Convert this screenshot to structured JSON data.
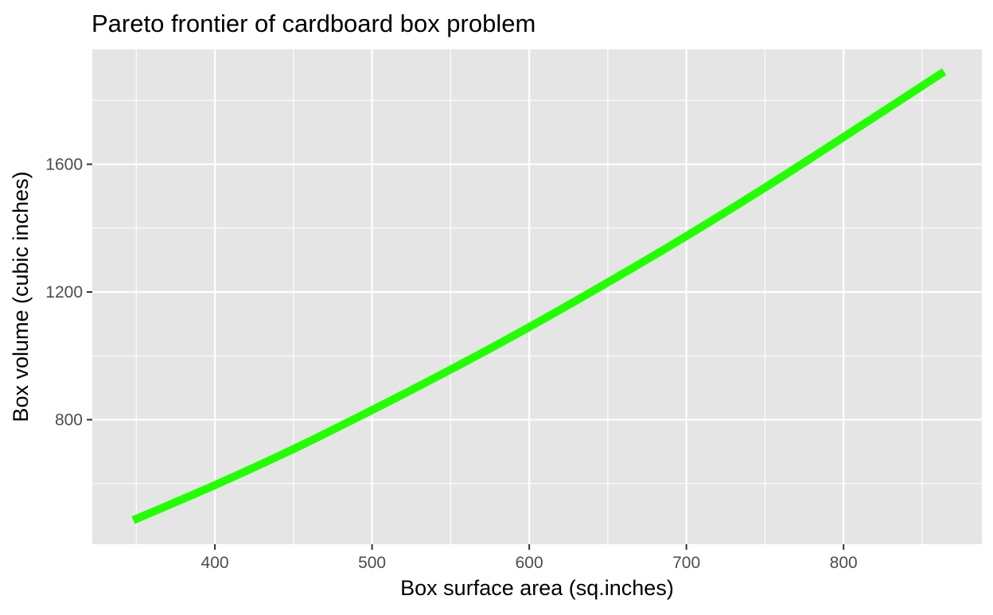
{
  "chart_data": {
    "type": "line",
    "title": "Pareto frontier of cardboard box problem",
    "xlabel": "Box surface area (sq.inches)",
    "ylabel": "Box volume (cubic inches)",
    "xlim": [
      322,
      888
    ],
    "ylim": [
      410,
      1960
    ],
    "x_ticks": [
      400,
      500,
      600,
      700,
      800
    ],
    "x_tick_labels": [
      "400",
      "500",
      "600",
      "700",
      "800"
    ],
    "x_minor_ticks": [
      350,
      450,
      550,
      650,
      750,
      850
    ],
    "y_ticks": [
      800,
      1200,
      1600
    ],
    "y_tick_labels": [
      "800",
      "1200",
      "1600"
    ],
    "y_minor_ticks": [
      600,
      1000,
      1400,
      1800
    ],
    "grid": true,
    "legend": "none",
    "series": [
      {
        "name": "Pareto frontier",
        "color": "#22ff00",
        "x": [
          348,
          400,
          450,
          500,
          550,
          600,
          650,
          700,
          750,
          800,
          864
        ],
        "y": [
          485,
          595,
          708,
          830,
          957,
          1090,
          1230,
          1375,
          1527,
          1685,
          1890
        ]
      }
    ]
  },
  "colors": {
    "panel_background": "#e5e5e5",
    "grid_line": "#ffffff",
    "tick_mark": "#333333",
    "tick_label": "#4d4d4d"
  }
}
